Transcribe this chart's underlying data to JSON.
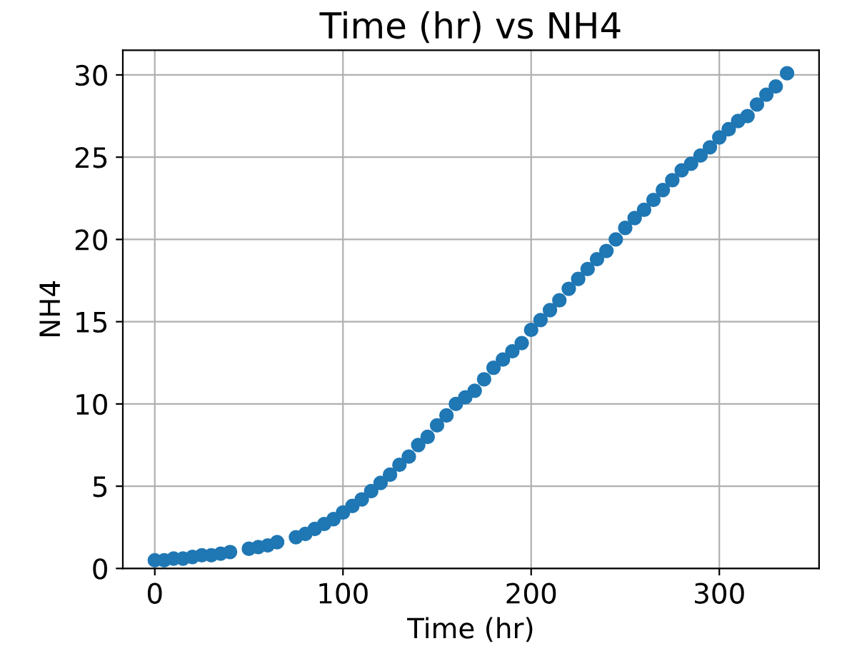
{
  "chart_data": {
    "type": "scatter",
    "title": "Time (hr) vs NH4",
    "xlabel": "Time (hr)",
    "ylabel": "NH4",
    "x": [
      0,
      5,
      10,
      15,
      20,
      25,
      30,
      35,
      40,
      50,
      55,
      60,
      65,
      75,
      80,
      85,
      90,
      95,
      100,
      105,
      110,
      115,
      120,
      125,
      130,
      135,
      140,
      145,
      150,
      155,
      160,
      165,
      170,
      175,
      180,
      185,
      190,
      195,
      200,
      205,
      210,
      215,
      220,
      225,
      230,
      235,
      240,
      245,
      250,
      255,
      260,
      265,
      270,
      275,
      280,
      285,
      290,
      295,
      300,
      305,
      310,
      315,
      320,
      325,
      330,
      336
    ],
    "series": [
      {
        "color": "#1f77b4",
        "values": [
          0.5,
          0.5,
          0.6,
          0.6,
          0.7,
          0.8,
          0.8,
          0.9,
          1.0,
          1.2,
          1.3,
          1.4,
          1.6,
          1.9,
          2.1,
          2.4,
          2.7,
          3.0,
          3.4,
          3.8,
          4.2,
          4.7,
          5.2,
          5.7,
          6.3,
          6.8,
          7.5,
          8.0,
          8.7,
          9.3,
          10.0,
          10.4,
          10.8,
          11.5,
          12.2,
          12.7,
          13.2,
          13.7,
          14.5,
          15.1,
          15.7,
          16.3,
          17.0,
          17.6,
          18.2,
          18.8,
          19.3,
          20.0,
          20.7,
          21.3,
          21.8,
          22.4,
          23.0,
          23.6,
          24.2,
          24.6,
          25.1,
          25.6,
          26.2,
          26.7,
          27.2,
          27.5,
          28.2,
          28.8,
          29.3,
          30.1
        ]
      }
    ],
    "xlim": [
      -17,
      353
    ],
    "ylim": [
      0,
      31.5
    ],
    "xticks": [
      0,
      100,
      200,
      300
    ],
    "yticks": [
      0,
      5,
      10,
      15,
      20,
      25,
      30
    ],
    "grid": true,
    "marker": "circle"
  }
}
